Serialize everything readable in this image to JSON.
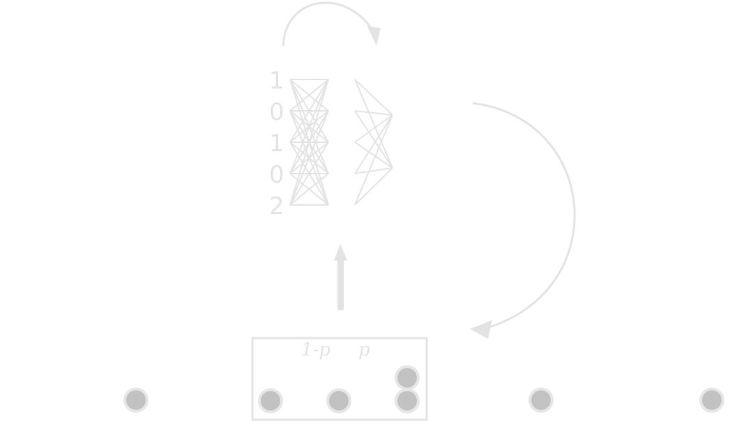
{
  "network": {
    "inputs": [
      "1",
      "0",
      "1",
      "0",
      "2"
    ]
  },
  "probabilities": {
    "left": "1-p",
    "right": "p"
  },
  "colors": {
    "stroke": "#e3e3e3",
    "node_fill": "#c2c2c2",
    "node_stroke": "#e6e6e6",
    "background": "#ffffff"
  }
}
